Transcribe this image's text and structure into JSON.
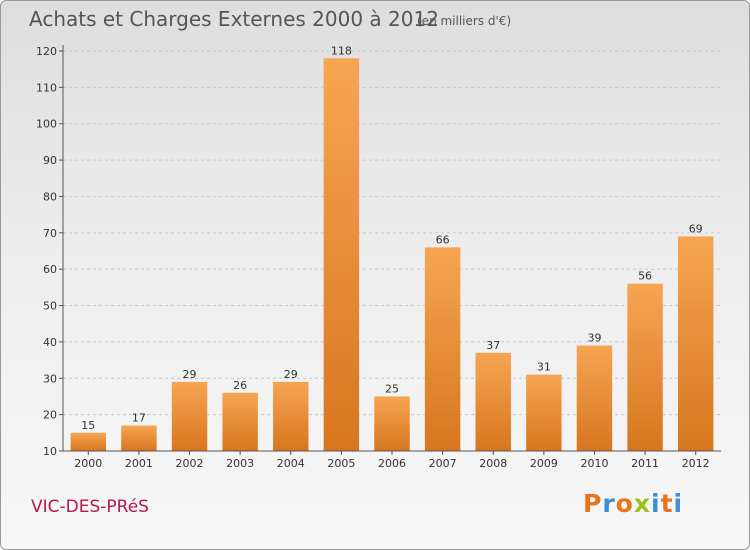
{
  "header": {
    "title": "Achats et Charges Externes 2000 à 2012",
    "subtitle": "(en milliers d'€)"
  },
  "footer": {
    "commune": "VIC-DES-PRéS",
    "logo_text": "Proxiti",
    "logo_colors": [
      "#e8741c",
      "#3a8fd6",
      "#e8741c",
      "#9bc31c",
      "#3a8fd6",
      "#e8741c",
      "#3a8fd6"
    ]
  },
  "colors": {
    "bar_light": "#f6a552",
    "bar_dark": "#d7761f",
    "axis": "#555555",
    "grid": "#c8c8c8",
    "text": "#333333"
  },
  "chart_data": {
    "type": "bar",
    "title": "Achats et Charges Externes 2000 à 2012",
    "subtitle": "(en milliers d'€)",
    "xlabel": "",
    "ylabel": "",
    "categories": [
      "2000",
      "2001",
      "2002",
      "2003",
      "2004",
      "2005",
      "2006",
      "2007",
      "2008",
      "2009",
      "2010",
      "2011",
      "2012"
    ],
    "values": [
      15,
      17,
      29,
      26,
      29,
      118,
      25,
      66,
      37,
      31,
      39,
      56,
      69
    ],
    "ylim": [
      10,
      120
    ],
    "yticks": [
      10,
      20,
      30,
      40,
      50,
      60,
      70,
      80,
      90,
      100,
      110,
      120
    ],
    "grid": true,
    "legend": "none"
  }
}
